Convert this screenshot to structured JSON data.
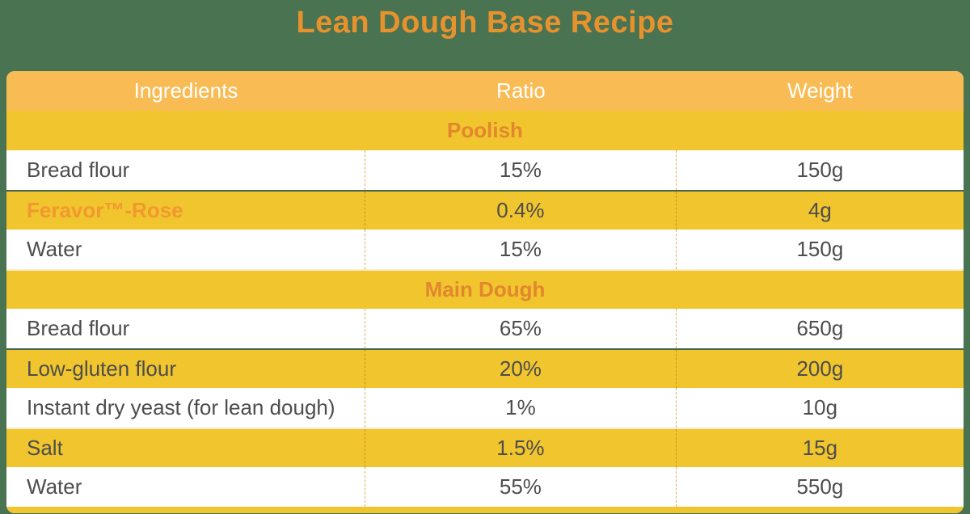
{
  "chart_data": {
    "type": "table",
    "title": "Lean Dough Base Recipe",
    "columns": [
      "Ingredients",
      "Ratio",
      "Weight"
    ],
    "sections": [
      {
        "name": "Poolish",
        "rows": [
          {
            "ingredient": "Bread flour",
            "ratio": "15%",
            "weight": "150g"
          },
          {
            "ingredient": "Feravor™-Rose",
            "ratio": "0.4%",
            "weight": "4g"
          },
          {
            "ingredient": "Water",
            "ratio": "15%",
            "weight": "150g"
          }
        ]
      },
      {
        "name": "Main Dough",
        "rows": [
          {
            "ingredient": "Bread flour",
            "ratio": "65%",
            "weight": "650g"
          },
          {
            "ingredient": "Low-gluten flour",
            "ratio": "20%",
            "weight": "200g"
          },
          {
            "ingredient": "Instant dry yeast (for lean dough)",
            "ratio": "1%",
            "weight": "10g"
          },
          {
            "ingredient": "Salt",
            "ratio": "1.5%",
            "weight": "15g"
          },
          {
            "ingredient": "Water",
            "ratio": "55%",
            "weight": "550g"
          }
        ]
      }
    ],
    "layout": {
      "header_position": "top",
      "section_banners_centered": true
    }
  },
  "colors": {
    "background_green": "#4A7351",
    "header_row": "#F9BC55",
    "gold_row": "#F1C52E",
    "title_orange": "#E8922E",
    "section_label_orange": "#E2872E",
    "brand_orange": "#F0992F",
    "body_text": "#4D4D4D"
  }
}
